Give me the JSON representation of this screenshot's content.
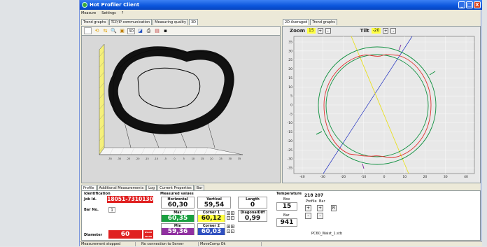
{
  "window": {
    "title": "Hot Profiler Client",
    "controls": {
      "minimize": "_",
      "maximize": "□",
      "close": "X"
    }
  },
  "menu": [
    "Measure",
    "Settings",
    "?"
  ],
  "left_tabs": [
    "Trend graphs",
    "TCP/IP communication",
    "Measuring quality",
    "3D"
  ],
  "right_tabs": [
    "2D Averaged",
    "Trend graphs"
  ],
  "toolbar3d": {
    "btn_3d_label": "3D"
  },
  "plot2d": {
    "zoom_label": "Zoom",
    "zoom_value": "15",
    "tilt_label": "Tilt",
    "tilt_value": "-20",
    "plus": "+",
    "minus": "-",
    "y_ticks": [
      "35",
      "30",
      "25",
      "20",
      "15",
      "10",
      "5",
      "0",
      "-5",
      "-10",
      "-15",
      "-20",
      "-25",
      "-30",
      "-35"
    ],
    "x_ticks": [
      "-40",
      "-30",
      "-20",
      "-10",
      "0",
      "10",
      "20",
      "30",
      "40"
    ]
  },
  "plot3d": {
    "x_ticks": [
      "-35",
      "-30",
      "-25",
      "-20",
      "-15",
      "-10",
      "-5",
      "0",
      "5",
      "10",
      "15",
      "20",
      "25",
      "30",
      "35"
    ]
  },
  "bottom_tabs": [
    "Profile",
    "Additional Measurements",
    "Log",
    "Current Properties",
    "Bar"
  ],
  "identification": {
    "section": "Identification",
    "job_label": "Job Id.",
    "job_value": "18051-7310130",
    "bar_label": "Bar No.",
    "bar_value": "1",
    "diameter_label": "Diameter",
    "diameter_value": "60",
    "diameter_sub1": "R5x60",
    "diameter_sub2": "56x60"
  },
  "measured": {
    "section": "Measured values",
    "horizontal_label": "Horizontal",
    "horizontal_value": "60,30",
    "vertical_label": "Vertical",
    "vertical_value": "59,54",
    "length_label": "Length",
    "length_value": "0",
    "max_label": "Max",
    "max_value": "60,35",
    "corner1_label": "Corner 1",
    "corner1_value": "60,12",
    "diagonal_label": "DiagonalDiff",
    "diagonal_value": "0,99",
    "min_label": "Min",
    "min_value": "59,36",
    "corner2_label": "Corner 2",
    "corner2_value": "60,03"
  },
  "temperature": {
    "section": "Temperature",
    "box_label": "Box",
    "box_value": "15",
    "bar_label": "Bar",
    "bar_value": "941"
  },
  "profile": {
    "numbers": "218 207",
    "profile_label": "Profile",
    "bar_label": "Bar",
    "r_label": "R",
    "file": "PC60_Waist_1.stb"
  },
  "status": [
    "Measurement stopped",
    "No connection to Server",
    "MoveComp Ok"
  ],
  "colors": {
    "accent": "#0a55dc",
    "red": "#e02020",
    "green": "#1aa040",
    "yellow": "#ffff40",
    "purple": "#9030a0",
    "blue": "#3050c0"
  }
}
